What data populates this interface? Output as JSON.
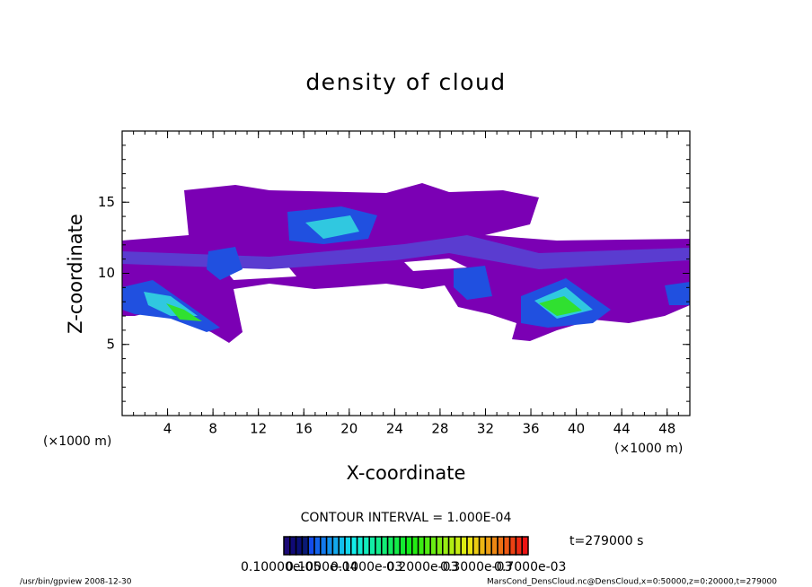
{
  "chart_data": {
    "type": "contour",
    "title": "density of cloud",
    "x_label": "X-coordinate",
    "y_label": "Z-coordinate",
    "x_unit": "(×1000 m)",
    "y_unit": "(×1000 m)",
    "xlim": [
      0,
      50
    ],
    "ylim": [
      0,
      20
    ],
    "xticks": [
      4,
      8,
      12,
      16,
      20,
      24,
      28,
      32,
      36,
      40,
      44,
      48
    ],
    "yticks": [
      5,
      10,
      15
    ],
    "contour_interval": "CONTOUR INTERVAL = 1.000E-04",
    "time": "t=279000 s",
    "colorbar_labels": [
      "0.10000e-05",
      "0.1000e-04",
      "0.1000e-03",
      "0.2000e-03",
      "0.3000e-03",
      "0.7000e-03"
    ],
    "footer_left": "/usr/bin/gpview   2008-12-30",
    "footer_right": "MarsCond_DensCloud.nc@DensCloud,x=0:50000,z=0:20000,t=279000"
  }
}
